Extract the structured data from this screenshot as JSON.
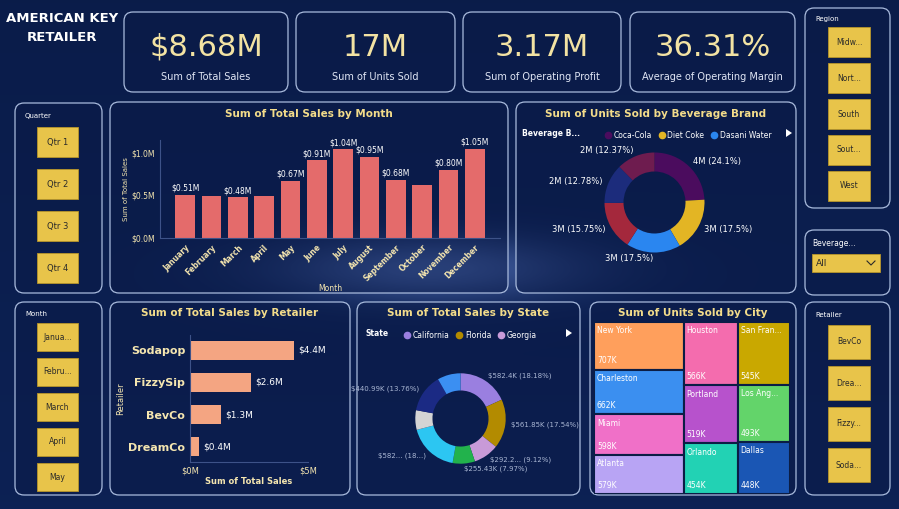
{
  "header": {
    "title_lines": [
      "AMERICAN KEY",
      "RETAILER"
    ]
  },
  "kpis": [
    {
      "value": "$8.68M",
      "label": "Sum of Total Sales"
    },
    {
      "value": "17M",
      "label": "Sum of Units Sold"
    },
    {
      "value": "3.17M",
      "label": "Sum of Operating Profit"
    },
    {
      "value": "36.31%",
      "label": "Average of Operating Margin"
    }
  ],
  "slicers": {
    "quarter": {
      "title": "Quarter",
      "items": [
        "Qtr 1",
        "Qtr 2",
        "Qtr 3",
        "Qtr 4"
      ]
    },
    "month": {
      "title": "Month",
      "items": [
        "Janua...",
        "Febru...",
        "March",
        "April",
        "May"
      ]
    },
    "region": {
      "title": "Region",
      "items": [
        "Midw...",
        "Nort...",
        "South",
        "Sout...",
        "West"
      ]
    },
    "beverage": {
      "title": "Beverage...",
      "selected": "All"
    },
    "retailer": {
      "title": "Retailer",
      "items": [
        "BevCo",
        "Drea...",
        "Fizzy...",
        "Soda..."
      ]
    }
  },
  "chart_data": [
    {
      "type": "bar",
      "title": "Sum of Total Sales by Month",
      "x_label": "Month",
      "y_label": "Sum of Total Sales",
      "categories": [
        "January",
        "February",
        "March",
        "April",
        "May",
        "June",
        "July",
        "August",
        "September",
        "October",
        "November",
        "December"
      ],
      "values": [
        0.51,
        0.49,
        0.48,
        0.49,
        0.67,
        0.91,
        1.04,
        0.95,
        0.68,
        0.62,
        0.8,
        1.05
      ],
      "value_labels": [
        "$0.51M",
        null,
        "$0.48M",
        null,
        "$0.67M",
        "$0.91M",
        "$1.04M",
        "$0.95M",
        "$0.68M",
        null,
        "$0.80M",
        "$1.05M"
      ],
      "color": "#e46b6b",
      "ylim": [
        0,
        1.15
      ],
      "yticks": [
        {
          "value": 0,
          "label": "$0.0M"
        },
        {
          "value": 0.5,
          "label": "$0.5M"
        },
        {
          "value": 1.0,
          "label": "$1.0M"
        }
      ],
      "data_labels": true
    },
    {
      "type": "donut",
      "title": "Sum of Units Sold by Beverage Brand",
      "legend_title": "Beverage B...",
      "legend": "upper center",
      "categories": [
        "Coca-Cola",
        "Diet Coke",
        "Dasani Water",
        null,
        null,
        null
      ],
      "values": [
        24.1,
        17.5,
        17.5,
        15.75,
        12.78,
        12.37
      ],
      "value_labels": [
        "4M (24.1%)",
        "3M (17.5%)",
        "3M (17.5%)",
        "3M (15.75%)",
        "2M (12.78%)",
        "2M (12.37%)"
      ],
      "colors": [
        "#4b0c5e",
        "#e3b524",
        "#2a86f0",
        "#a4283c",
        "#1c2c7c",
        "#6e1c4f"
      ],
      "data_labels": true
    },
    {
      "type": "bar",
      "orientation": "horizontal",
      "title": "Sum of Total Sales by Retailer",
      "x_label": "Sum of Total Sales",
      "y_label": "Retailer",
      "categories": [
        "Sodapop",
        "FizzySip",
        "BevCo",
        "DreamCo"
      ],
      "values": [
        4.4,
        2.6,
        1.3,
        0.4
      ],
      "value_labels": [
        "$4.4M",
        "$2.6M",
        "$1.3M",
        "$0.4M"
      ],
      "color": "#f4a582",
      "xlim": [
        0,
        5
      ],
      "xticks": [
        {
          "value": 0,
          "label": "$0M"
        },
        {
          "value": 5,
          "label": "$5M"
        }
      ],
      "data_labels": true
    },
    {
      "type": "donut",
      "title": "Sum of Total Sales by State",
      "legend_title": "State",
      "legend": "upper center",
      "categories": [
        "California",
        "Florida",
        "Georgia",
        null,
        null,
        null,
        null,
        null
      ],
      "values": [
        18.18,
        17.54,
        9.12,
        7.97,
        18.15,
        7.0,
        13.76,
        8.28
      ],
      "value_labels": [
        "$582.4K (18.18%)",
        "$561.85K (17.54%)",
        "$292.2... (9.12%)",
        "$255.43K (7.97%)",
        "$582... (18...)",
        null,
        "$440.99K (13.76%)",
        null
      ],
      "colors": [
        "#9a7fe0",
        "#b38b00",
        "#c89ad8",
        "#22b24c",
        "#2cc6f2",
        "#d4d4d4",
        "#1b2a84",
        "#3b8ff2"
      ],
      "data_labels": true
    },
    {
      "type": "treemap",
      "title": "Sum of Units Sold by City",
      "categories": [
        "New York",
        "Charleston",
        "Miami",
        "Atlanta",
        "Houston",
        "Portland",
        "Orlando",
        "San Fran...",
        "Los Ang...",
        "Dallas"
      ],
      "values": [
        707,
        662,
        598,
        579,
        566,
        519,
        454,
        545,
        493,
        448
      ],
      "value_labels": [
        "707K",
        "662K",
        "598K",
        "579K",
        "566K",
        "519K",
        "454K",
        "545K",
        "493K",
        "448K"
      ],
      "colors": [
        "#ff9f5c",
        "#3b8ff0",
        "#f070c8",
        "#b8a4f4",
        "#f46cae",
        "#b752cc",
        "#22d2b4",
        "#c9a800",
        "#63d46a",
        "#1a56b4"
      ],
      "data_labels": true
    }
  ]
}
